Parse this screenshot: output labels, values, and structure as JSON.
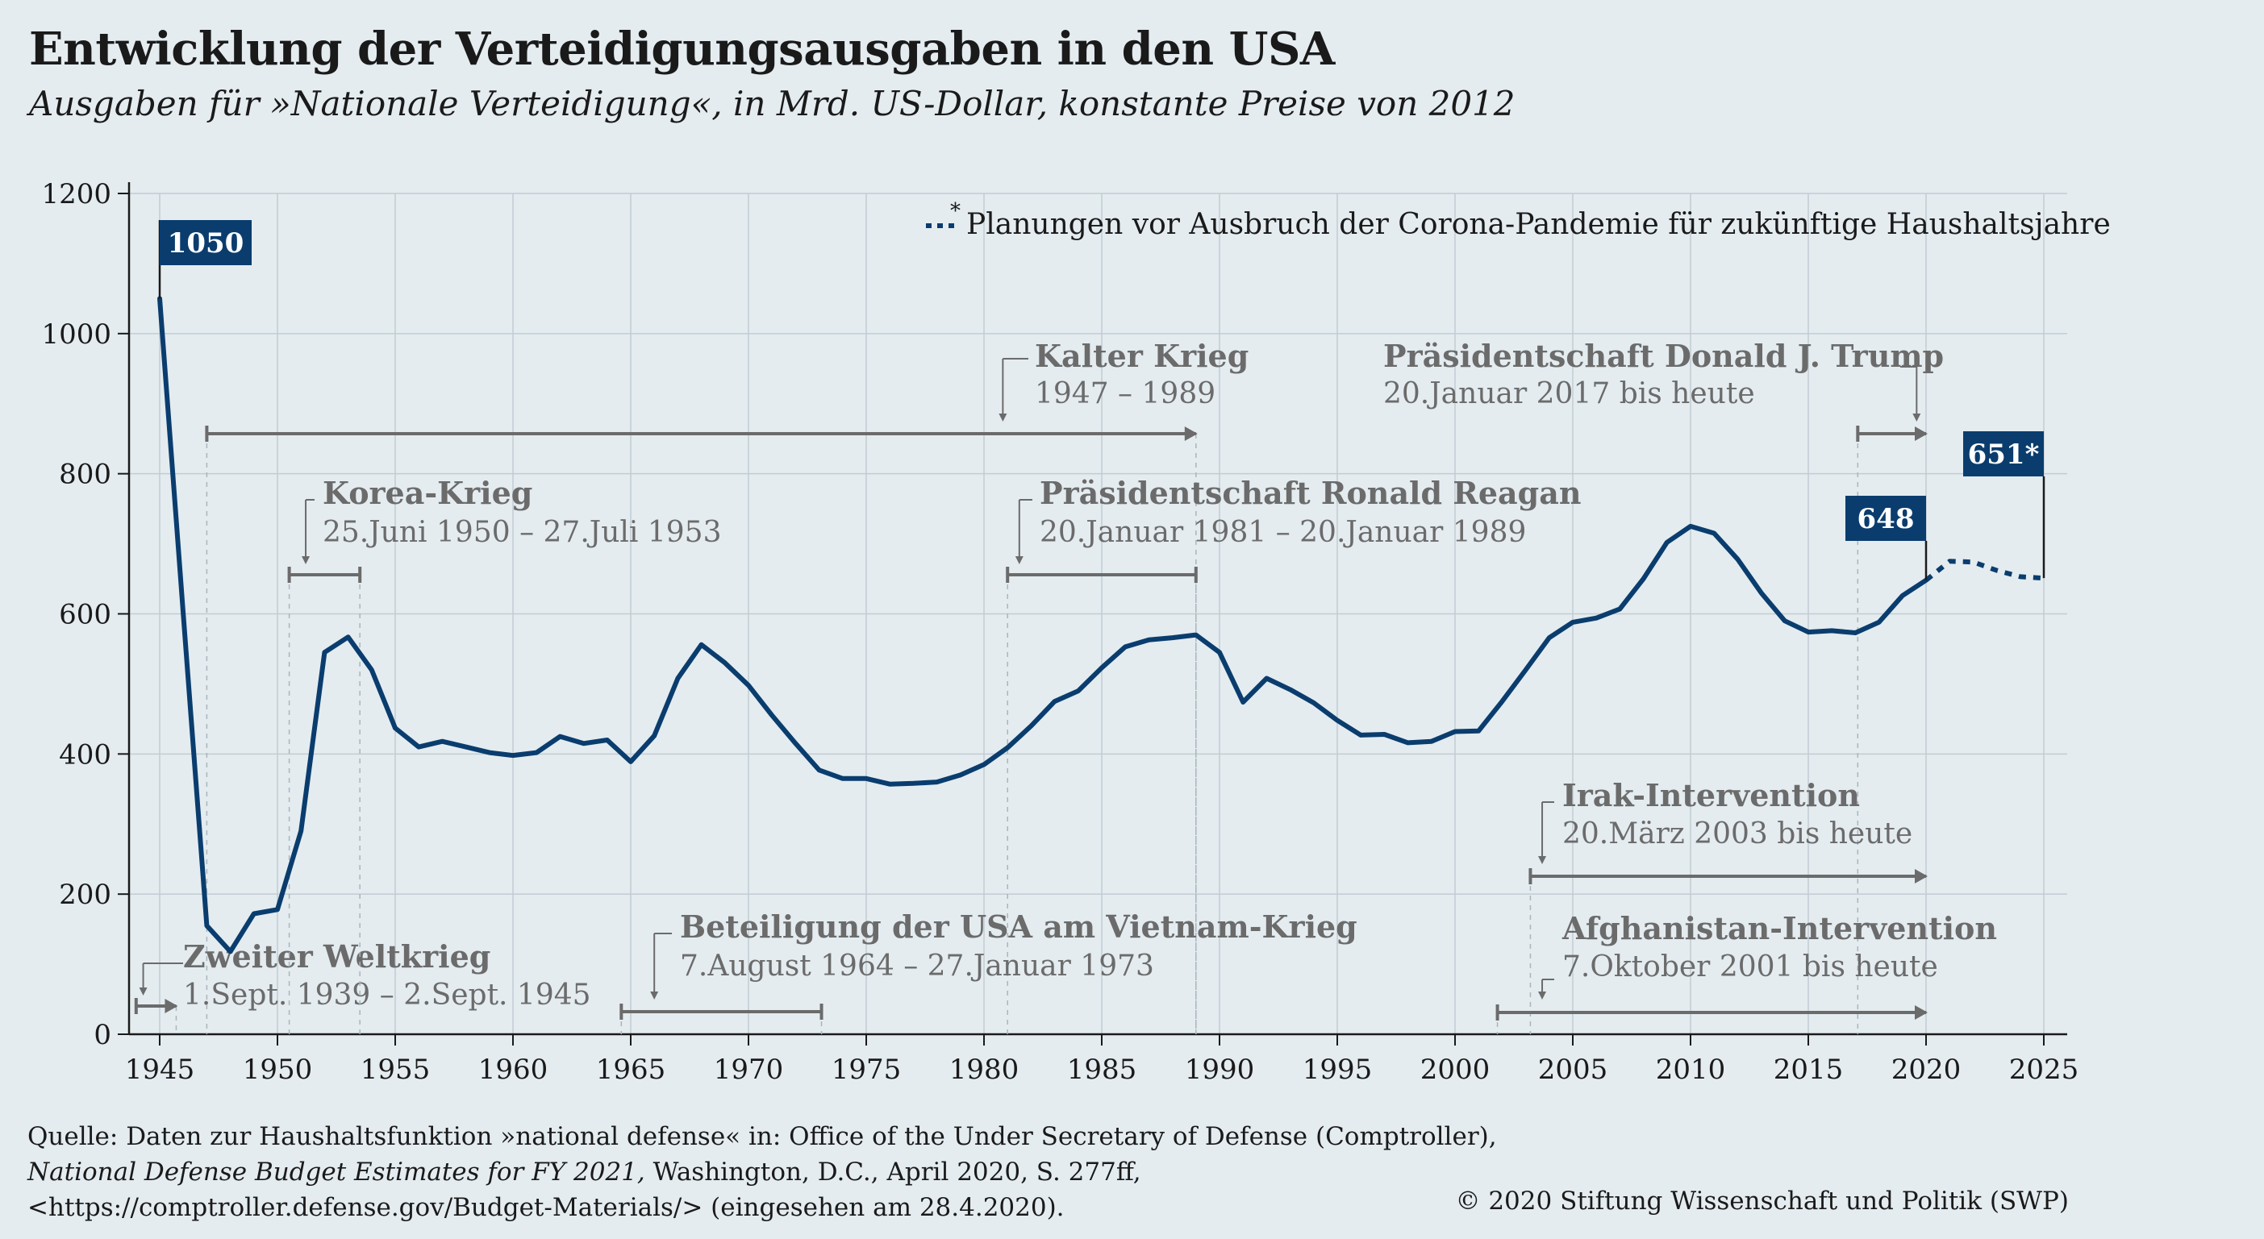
{
  "title": "Entwicklung der Verteidigungsausgaben in den USA",
  "subtitle": "Ausgaben für »Nationale Verteidigung«, in Mrd. US-Dollar, konstante Preise von 2012",
  "legend": {
    "marker": "*",
    "text": "Planungen vor Ausbruch der Corona-Pandemie für zukünftige Haushaltsjahre"
  },
  "colors": {
    "line": "#0a3d6e",
    "annotation": "#6b6b6b",
    "grid": "#c2ccd2",
    "background": "#e4ecf0"
  },
  "chart_data": {
    "type": "line",
    "title": "Entwicklung der Verteidigungsausgaben in den USA",
    "subtitle": "Ausgaben für »Nationale Verteidigung«, in Mrd. US-Dollar, konstante Preise von 2012",
    "xlabel": "",
    "ylabel": "",
    "xlim": [
      1944,
      2026
    ],
    "ylim": [
      0,
      1200
    ],
    "xticks": [
      1945,
      1950,
      1955,
      1960,
      1965,
      1970,
      1975,
      1980,
      1985,
      1990,
      1995,
      2000,
      2005,
      2010,
      2015,
      2020,
      2025
    ],
    "yticks": [
      0,
      200,
      400,
      600,
      800,
      1000,
      1200
    ],
    "grid": true,
    "series": [
      {
        "name": "",
        "style": "solid",
        "x": [
          1945,
          1946,
          1947,
          1948,
          1949,
          1950,
          1951,
          1952,
          1953,
          1954,
          1955,
          1956,
          1957,
          1958,
          1959,
          1960,
          1961,
          1962,
          1963,
          1964,
          1965,
          1966,
          1967,
          1968,
          1969,
          1970,
          1971,
          1972,
          1973,
          1974,
          1975,
          1976,
          1977,
          1978,
          1979,
          1980,
          1981,
          1982,
          1983,
          1984,
          1985,
          1986,
          1987,
          1988,
          1989,
          1990,
          1991,
          1992,
          1993,
          1994,
          1995,
          1996,
          1997,
          1998,
          1999,
          2000,
          2001,
          2002,
          2003,
          2004,
          2005,
          2006,
          2007,
          2008,
          2009,
          2010,
          2011,
          2012,
          2013,
          2014,
          2015,
          2016,
          2017,
          2018,
          2019,
          2020
        ],
        "values": [
          1050,
          600,
          155,
          118,
          172,
          178,
          290,
          545,
          567,
          520,
          437,
          410,
          418,
          410,
          402,
          398,
          402,
          425,
          415,
          420,
          389,
          426,
          508,
          556,
          530,
          498,
          455,
          415,
          377,
          365,
          365,
          357,
          358,
          360,
          370,
          385,
          409,
          440,
          475,
          490,
          523,
          553,
          563,
          566,
          570,
          545,
          474,
          508,
          492,
          473,
          448,
          427,
          428,
          416,
          418,
          432,
          433,
          475,
          520,
          566,
          588,
          594,
          607,
          650,
          702,
          725,
          715,
          678,
          630,
          590,
          574,
          576,
          573,
          588,
          626,
          648
        ]
      },
      {
        "name": "*",
        "style": "dotted",
        "x": [
          2020,
          2021,
          2022,
          2023,
          2024,
          2025
        ],
        "values": [
          648,
          675,
          674,
          662,
          653,
          651
        ]
      }
    ],
    "data_labels": [
      {
        "x": 1945,
        "value": 1050,
        "text": "1050"
      },
      {
        "x": 2020,
        "value": 648,
        "text": "648"
      },
      {
        "x": 2025,
        "value": 651,
        "text": "651*"
      }
    ],
    "annotations": [
      {
        "title": "Zweiter Weltkrieg",
        "dates": "1.Sept. 1939 – 2.Sept. 1945"
      },
      {
        "title": "Korea-Krieg",
        "dates": "25.Juni 1950 – 27.Juli 1953"
      },
      {
        "title": "Kalter Krieg",
        "dates": "1947 – 1989"
      },
      {
        "title": "Präsidentschaft Ronald Reagan",
        "dates": "20.Januar 1981 – 20.Januar 1989"
      },
      {
        "title": "Beteiligung der USA am Vietnam-Krieg",
        "dates": "7.August 1964 – 27.Januar 1973"
      },
      {
        "title": "Präsidentschaft Donald J. Trump",
        "dates": "20.Januar 2017 bis heute"
      },
      {
        "title": "Irak-Intervention",
        "dates": "20.März 2003 bis heute"
      },
      {
        "title": "Afghanistan-Intervention",
        "dates": "7.Oktober 2001 bis heute"
      }
    ]
  },
  "footer": {
    "line1": "Quelle: Daten zur Haushaltsfunktion »national defense« in: Office of the Under Secretary of Defense (Comptroller),",
    "line2_italic": "National Defense Budget Estimates for FY 2021,",
    "line2_rest": " Washington, D.C., April 2020, S. 277ff,",
    "line3": "<https://comptroller.defense.gov/Budget-Materials/> (eingesehen am 28.4.2020).",
    "copyright": "© 2020 Stiftung Wissenschaft und Politik (SWP)"
  }
}
